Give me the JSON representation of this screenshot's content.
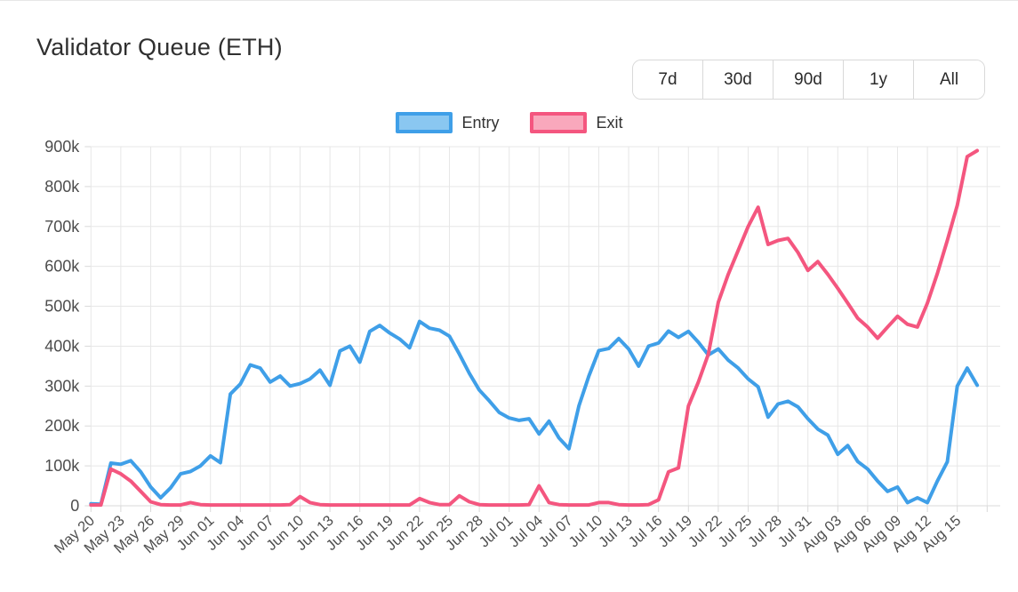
{
  "header": {
    "title": "Validator Queue (ETH)",
    "ranges": [
      "7d",
      "30d",
      "90d",
      "1y",
      "All"
    ]
  },
  "legend": [
    {
      "label": "Entry",
      "line_color": "#3f9fe8",
      "swatch_fill": "#8ac7f1"
    },
    {
      "label": "Exit",
      "line_color": "#f4567f",
      "swatch_fill": "#f9a8bc"
    }
  ],
  "chart_data": {
    "type": "line",
    "title": "Validator Queue (ETH)",
    "grid": true,
    "legend_position": "top-center",
    "ylim": [
      0,
      900000
    ],
    "ytick_step": 100000,
    "ytick_labels": [
      "0",
      "100k",
      "200k",
      "300k",
      "400k",
      "500k",
      "600k",
      "700k",
      "800k",
      "900k"
    ],
    "xtick_every": 3,
    "x": [
      "May 20",
      "May 21",
      "May 22",
      "May 23",
      "May 24",
      "May 25",
      "May 26",
      "May 27",
      "May 28",
      "May 29",
      "May 30",
      "May 31",
      "Jun 01",
      "Jun 02",
      "Jun 03",
      "Jun 04",
      "Jun 05",
      "Jun 06",
      "Jun 07",
      "Jun 08",
      "Jun 09",
      "Jun 10",
      "Jun 11",
      "Jun 12",
      "Jun 13",
      "Jun 14",
      "Jun 15",
      "Jun 16",
      "Jun 17",
      "Jun 18",
      "Jun 19",
      "Jun 20",
      "Jun 21",
      "Jun 22",
      "Jun 23",
      "Jun 24",
      "Jun 25",
      "Jun 26",
      "Jun 27",
      "Jun 28",
      "Jun 29",
      "Jun 30",
      "Jul 01",
      "Jul 02",
      "Jul 03",
      "Jul 04",
      "Jul 05",
      "Jul 06",
      "Jul 07",
      "Jul 08",
      "Jul 09",
      "Jul 10",
      "Jul 11",
      "Jul 12",
      "Jul 13",
      "Jul 14",
      "Jul 15",
      "Jul 16",
      "Jul 17",
      "Jul 18",
      "Jul 19",
      "Jul 20",
      "Jul 21",
      "Jul 22",
      "Jul 23",
      "Jul 24",
      "Jul 25",
      "Jul 26",
      "Jul 27",
      "Jul 28",
      "Jul 29",
      "Jul 30",
      "Jul 31",
      "Aug 01",
      "Aug 02",
      "Aug 03",
      "Aug 04",
      "Aug 05",
      "Aug 06",
      "Aug 07",
      "Aug 08",
      "Aug 09",
      "Aug 10",
      "Aug 11",
      "Aug 12",
      "Aug 13",
      "Aug 14",
      "Aug 15",
      "Aug 16",
      "Aug 17"
    ],
    "series": [
      {
        "name": "Entry",
        "color": "#3f9fe8",
        "values": [
          5000,
          4000,
          107000,
          104000,
          113000,
          85000,
          47000,
          20000,
          45000,
          80000,
          86000,
          100000,
          125000,
          108000,
          280000,
          305000,
          353000,
          345000,
          310000,
          325000,
          300000,
          306000,
          318000,
          340000,
          302000,
          388000,
          400000,
          360000,
          437000,
          452000,
          433000,
          418000,
          396000,
          462000,
          445000,
          440000,
          425000,
          380000,
          332000,
          290000,
          263000,
          234000,
          220000,
          214000,
          218000,
          180000,
          212000,
          170000,
          143000,
          250000,
          325000,
          389000,
          394000,
          419000,
          393000,
          350000,
          400000,
          408000,
          438000,
          422000,
          437000,
          410000,
          378000,
          393000,
          365000,
          345000,
          318000,
          298000,
          222000,
          255000,
          262000,
          248000,
          218000,
          192000,
          177000,
          129000,
          151000,
          111000,
          92000,
          62000,
          36000,
          47000,
          8000,
          20000,
          8000,
          62000,
          110000,
          300000,
          345000,
          302000
        ]
      },
      {
        "name": "Exit",
        "color": "#f4567f",
        "values": [
          2000,
          2000,
          92000,
          80000,
          62000,
          36000,
          10000,
          3000,
          2000,
          2000,
          8000,
          3000,
          2000,
          2000,
          2000,
          2000,
          2000,
          2000,
          2000,
          2000,
          3000,
          23000,
          8000,
          3000,
          2000,
          2000,
          2000,
          2000,
          2000,
          2000,
          2000,
          2000,
          2000,
          18000,
          8000,
          3000,
          3000,
          25000,
          10000,
          3000,
          2000,
          2000,
          2000,
          2000,
          3000,
          50000,
          8000,
          3000,
          2000,
          2000,
          2000,
          8000,
          8000,
          3000,
          2000,
          2000,
          3000,
          15000,
          85000,
          95000,
          250000,
          310000,
          380000,
          510000,
          580000,
          640000,
          700000,
          748000,
          655000,
          665000,
          670000,
          635000,
          590000,
          612000,
          580000,
          545000,
          508000,
          470000,
          448000,
          420000,
          448000,
          475000,
          455000,
          448000,
          508000,
          582000,
          665000,
          753000,
          875000,
          890000
        ]
      }
    ]
  }
}
